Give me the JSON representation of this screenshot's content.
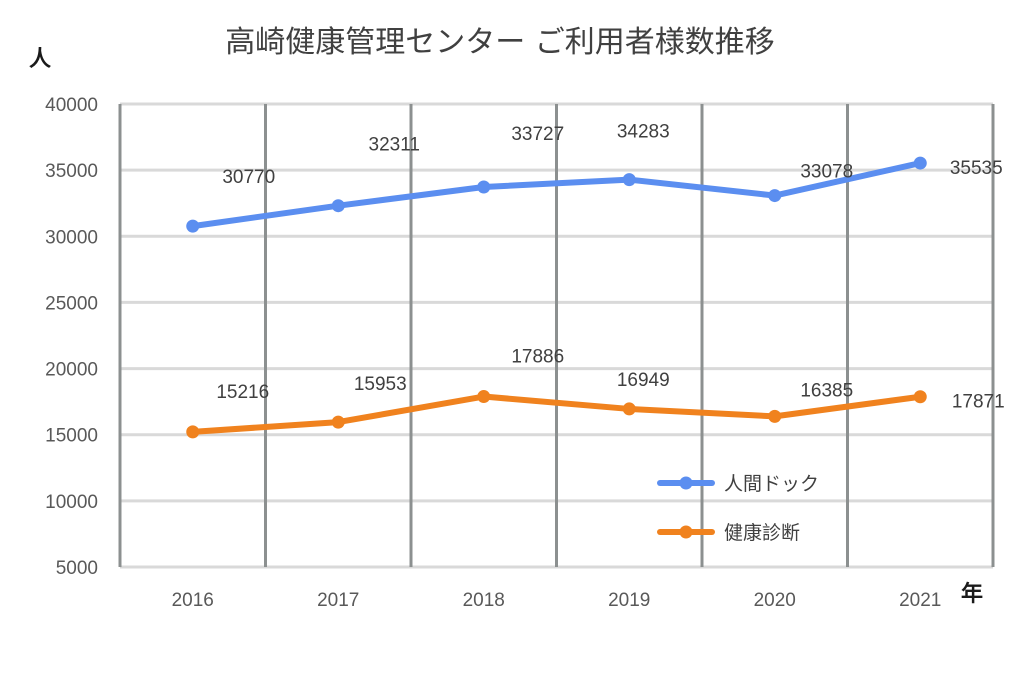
{
  "chart_data": {
    "type": "line",
    "title": "高崎健康管理センター ご利用者様数推移",
    "ylabel": "人",
    "xlabel": "年",
    "categories": [
      "2016",
      "2017",
      "2018",
      "2019",
      "2020",
      "2021"
    ],
    "ylim": [
      5000,
      40000
    ],
    "yticks": [
      5000,
      10000,
      15000,
      20000,
      25000,
      30000,
      35000,
      40000
    ],
    "grid": true,
    "legend_position": "bottom-right",
    "series": [
      {
        "name": "人間ドック",
        "color": "#5b8ef0",
        "values": [
          30770,
          32311,
          33727,
          34283,
          33078,
          35535
        ]
      },
      {
        "name": "健康診断",
        "color": "#f0821e",
        "values": [
          15216,
          15953,
          17886,
          16949,
          16385,
          17871
        ]
      }
    ]
  }
}
